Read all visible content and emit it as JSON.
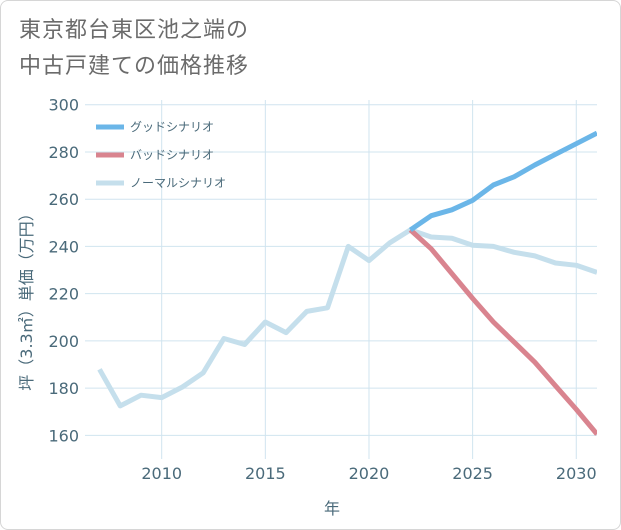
{
  "title_lines": [
    "東京都台東区池之端の",
    "中古戸建ての価格推移"
  ],
  "colors": {
    "good": "#6bb6e8",
    "bad": "#d9848f",
    "normal": "#c5dfec",
    "grid": "#d0e4ef",
    "text": "#4a6a7a"
  },
  "chart_data": {
    "type": "line",
    "title": "東京都台東区池之端の中古戸建ての価格推移",
    "xlabel": "年",
    "ylabel": "坪（3.3㎡）単価（万円）",
    "xlim": [
      2006.3,
      2031
    ],
    "ylim": [
      150,
      302
    ],
    "x_ticks": [
      2010,
      2015,
      2020,
      2025,
      2030
    ],
    "y_ticks": [
      160,
      180,
      200,
      220,
      240,
      260,
      280,
      300
    ],
    "legend_position": "top-left",
    "series": [
      {
        "name": "グッドシナリオ",
        "color_key": "good",
        "x": [
          2022,
          2023,
          2024,
          2025,
          2026,
          2027,
          2028,
          2029,
          2030,
          2031
        ],
        "y": [
          247,
          253,
          255.5,
          259.5,
          266,
          269.5,
          274.5,
          279,
          283.5,
          288
        ]
      },
      {
        "name": "バッドシナリオ",
        "color_key": "bad",
        "x": [
          2022,
          2023,
          2024,
          2025,
          2026,
          2027,
          2028,
          2029,
          2030,
          2031
        ],
        "y": [
          247,
          239,
          228.5,
          218,
          208,
          199.5,
          191,
          181,
          171,
          160.5
        ]
      },
      {
        "name": "ノーマルシナリオ",
        "color_key": "normal",
        "x": [
          2007,
          2008,
          2009,
          2010,
          2011,
          2012,
          2013,
          2014,
          2015,
          2016,
          2017,
          2018,
          2019,
          2020,
          2021,
          2022,
          2023,
          2024,
          2025,
          2026,
          2027,
          2028,
          2029,
          2030,
          2031
        ],
        "y": [
          188,
          172.5,
          177,
          176,
          180.5,
          186.5,
          201,
          198.5,
          208,
          203.5,
          212.5,
          214,
          240,
          234,
          241.5,
          247,
          244,
          243.5,
          240.5,
          240,
          237.5,
          236,
          233,
          232,
          229
        ]
      }
    ]
  }
}
